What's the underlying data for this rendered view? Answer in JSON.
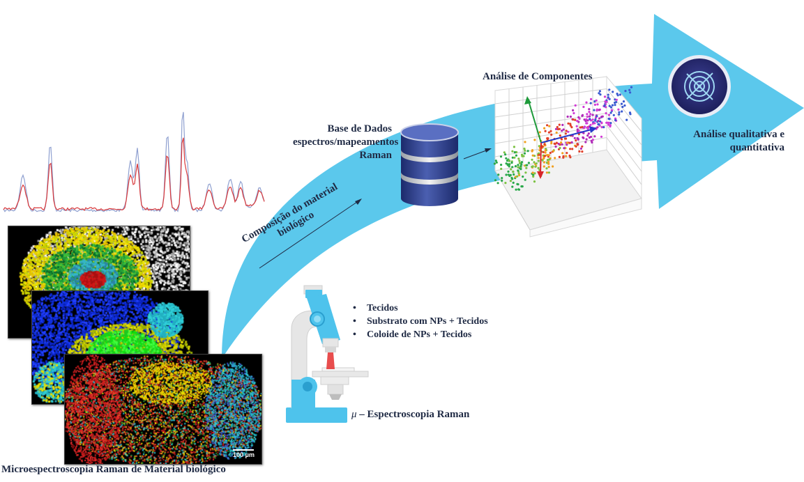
{
  "labels": {
    "database": [
      "Base de Dados",
      "espectros/mapeamentos",
      "Raman"
    ],
    "components": "Análise de Componentes",
    "output": [
      "Análise qualitativa e",
      "quantitativa"
    ],
    "composition": [
      "Composição do material",
      "biológico"
    ],
    "micro_symbol": "μ",
    "micro_text": " – Espectroscopia Raman",
    "bottom_title": "Microespectroscopia Raman de Material biológico",
    "scale_bar": "100 μm"
  },
  "samples": [
    "Tecidos",
    "Substrato com NPs + Tecidos",
    "Coloide de NPs + Tecidos"
  ],
  "colors": {
    "arrow": "#5bc8ec",
    "text": "#1f2a44",
    "spectrum_red": "#d9383a",
    "spectrum_blue": "#8fa0d0",
    "database": "#2e3f8a",
    "target_badge": "#2b2f7a",
    "microscope": "#4ec3ec"
  },
  "icons": [
    "database-icon",
    "target-icon",
    "microscope-icon",
    "pca-scatter-plot"
  ]
}
